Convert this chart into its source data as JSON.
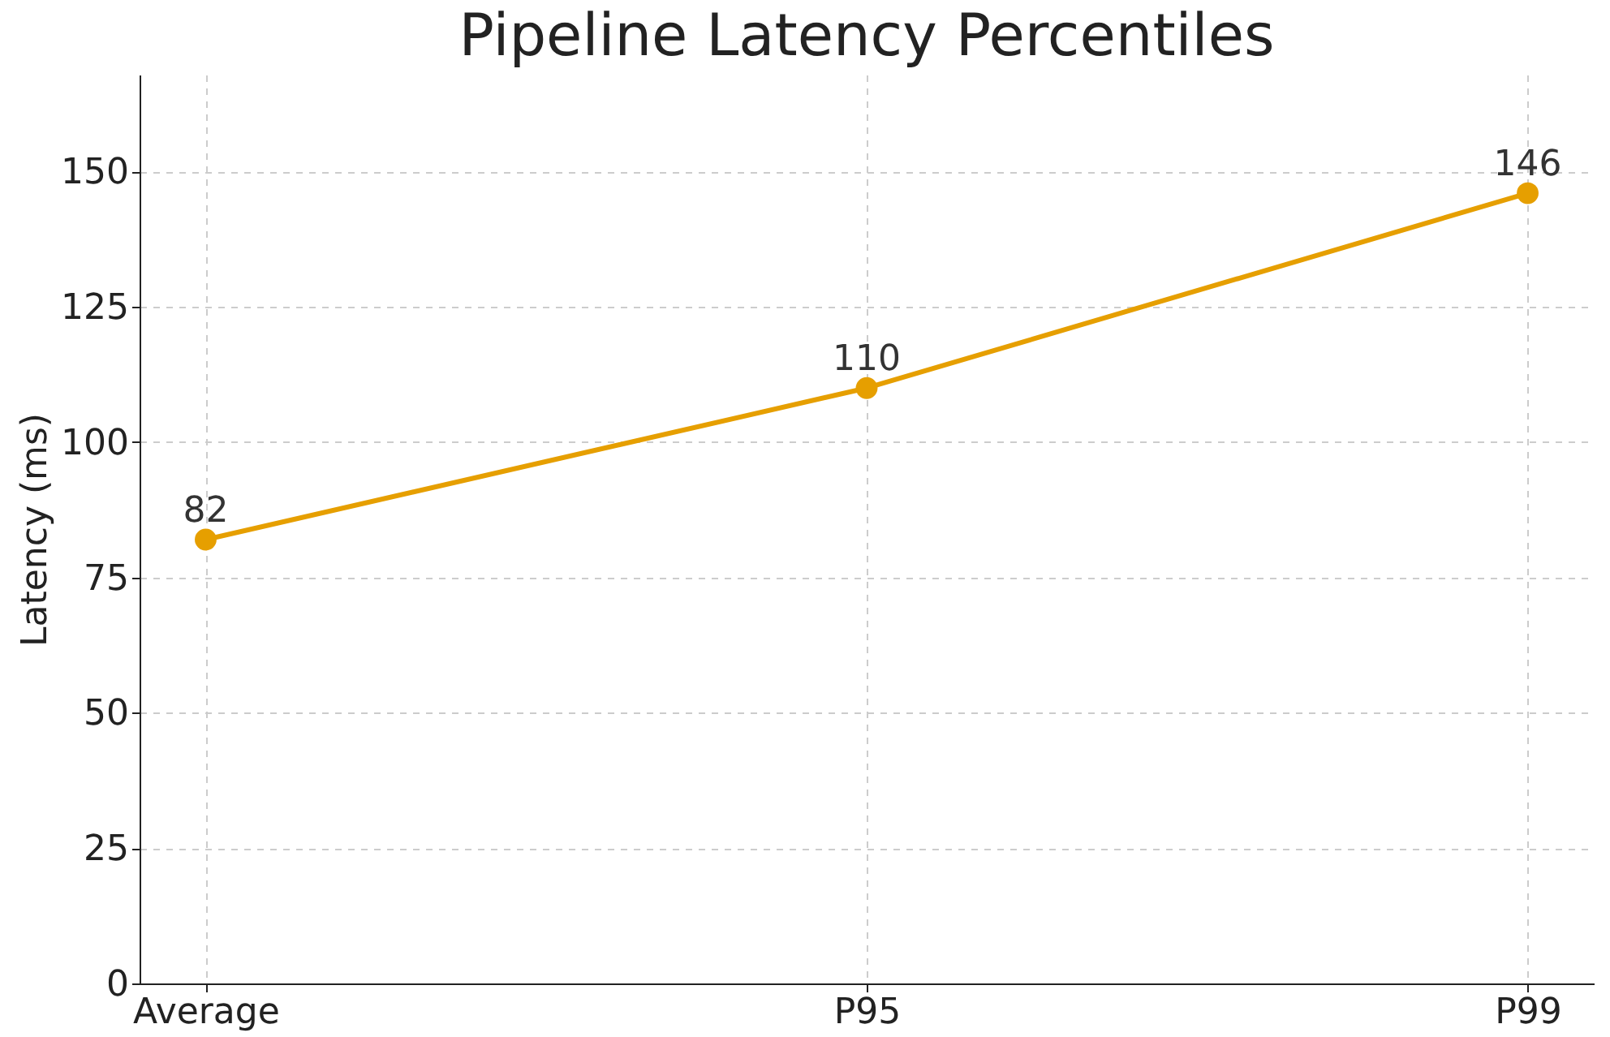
{
  "chart_data": {
    "type": "line",
    "title": "Pipeline Latency Percentiles",
    "ylabel": "Latency (ms)",
    "categories": [
      "Average",
      "P95",
      "P99"
    ],
    "series": [
      {
        "color": "#e69f00",
        "values": [
          82,
          110,
          146
        ]
      }
    ],
    "ylim": [
      0,
      167.9
    ],
    "yticks": [
      0,
      25,
      50,
      75,
      100,
      125,
      150
    ],
    "grid": true,
    "marker": "circle",
    "line_style": "solid",
    "data_labels": true
  }
}
